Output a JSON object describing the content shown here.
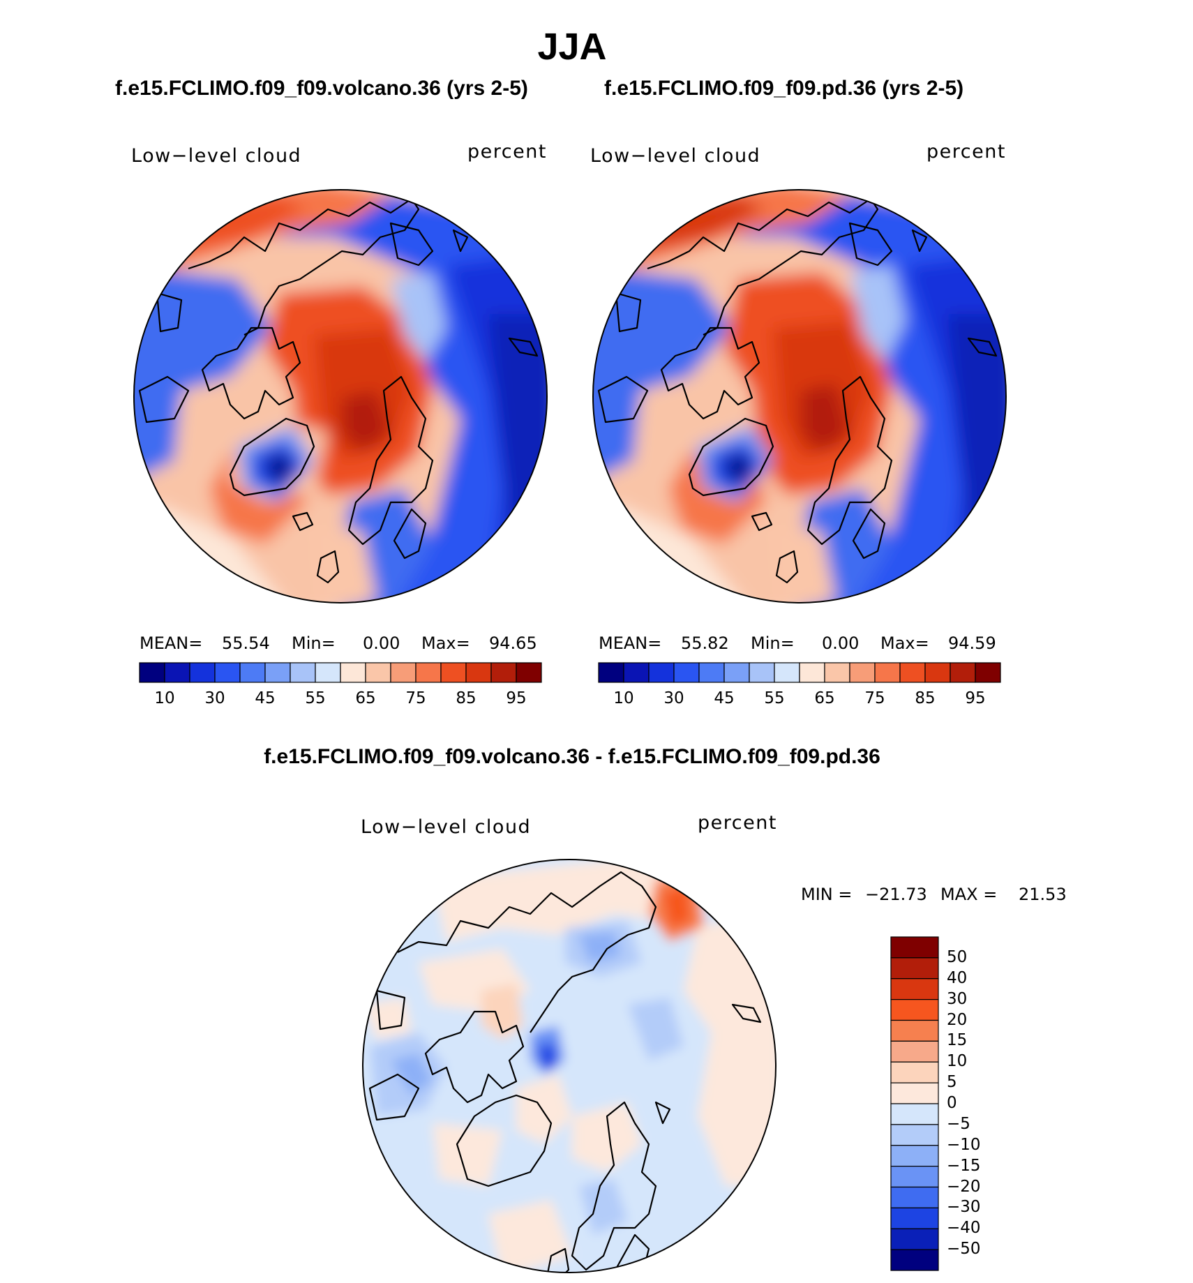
{
  "title": "JJA",
  "panels": [
    {
      "title": "f.e15.FCLIMO.f09_f09.volcano.36 (yrs 2-5)",
      "variable": "Low−level cloud",
      "units": "percent",
      "mean_label": "MEAN=",
      "mean": "55.54",
      "min_label": "Min=",
      "min": "0.00",
      "max_label": "Max=",
      "max": "94.65"
    },
    {
      "title": "f.e15.FCLIMO.f09_f09.pd.36 (yrs 2-5)",
      "variable": "Low−level cloud",
      "units": "percent",
      "mean_label": "MEAN=",
      "mean": "55.82",
      "min_label": "Min=",
      "min": "0.00",
      "max_label": "Max=",
      "max": "94.59"
    }
  ],
  "diff": {
    "title": "f.e15.FCLIMO.f09_f09.volcano.36 - f.e15.FCLIMO.f09_f09.pd.36",
    "variable": "Low−level cloud",
    "units": "percent",
    "min_label": "MIN =",
    "min": "−21.73",
    "max_label": "MAX =",
    "max": "21.53"
  },
  "colorbar_main": {
    "colors": [
      "#00007f",
      "#0a14b4",
      "#1432dc",
      "#2a55f2",
      "#4d7bf5",
      "#7aa0f7",
      "#a8c3f8",
      "#d5e6fb",
      "#fde7d8",
      "#fac6a9",
      "#f79d78",
      "#f6764a",
      "#ee5022",
      "#d93710",
      "#b21e0a",
      "#7f0000"
    ],
    "tick_labels": [
      "10",
      "30",
      "45",
      "55",
      "65",
      "75",
      "85",
      "95"
    ]
  },
  "colorbar_diff": {
    "colors": [
      "#7f0000",
      "#b21e0a",
      "#d93710",
      "#f6561f",
      "#f6804f",
      "#f7a98a",
      "#fcd4bc",
      "#fde8dc",
      "#d5e6fb",
      "#b3ccf9",
      "#8db0f7",
      "#6a93f5",
      "#3f6cf1",
      "#1d44e3",
      "#0a20b8",
      "#00007f"
    ],
    "tick_labels": [
      "50",
      "40",
      "30",
      "20",
      "15",
      "10",
      "5",
      "0",
      "−5",
      "−10",
      "−15",
      "−20",
      "−30",
      "−40",
      "−50"
    ]
  },
  "chart_data": {
    "type": "heatmap",
    "projection": "north polar stereographic",
    "season": "JJA",
    "variable": "Low-level cloud",
    "units": "percent",
    "maps": [
      {
        "case": "f.e15.FCLIMO.f09_f09.volcano.36 (yrs 2-5)",
        "mean": 55.54,
        "min": 0.0,
        "max": 94.65,
        "levels": [
          10,
          20,
          30,
          40,
          45,
          50,
          55,
          60,
          65,
          70,
          75,
          80,
          85,
          90,
          95
        ]
      },
      {
        "case": "f.e15.FCLIMO.f09_f09.pd.36 (yrs 2-5)",
        "mean": 55.82,
        "min": 0.0,
        "max": 94.59,
        "levels": [
          10,
          20,
          30,
          40,
          45,
          50,
          55,
          60,
          65,
          70,
          75,
          80,
          85,
          90,
          95
        ]
      },
      {
        "case": "volcano.36 - pd.36",
        "min": -21.73,
        "max": 21.53,
        "levels": [
          -50,
          -40,
          -30,
          -20,
          -15,
          -10,
          -5,
          0,
          5,
          10,
          15,
          20,
          30,
          40,
          50
        ]
      }
    ]
  }
}
